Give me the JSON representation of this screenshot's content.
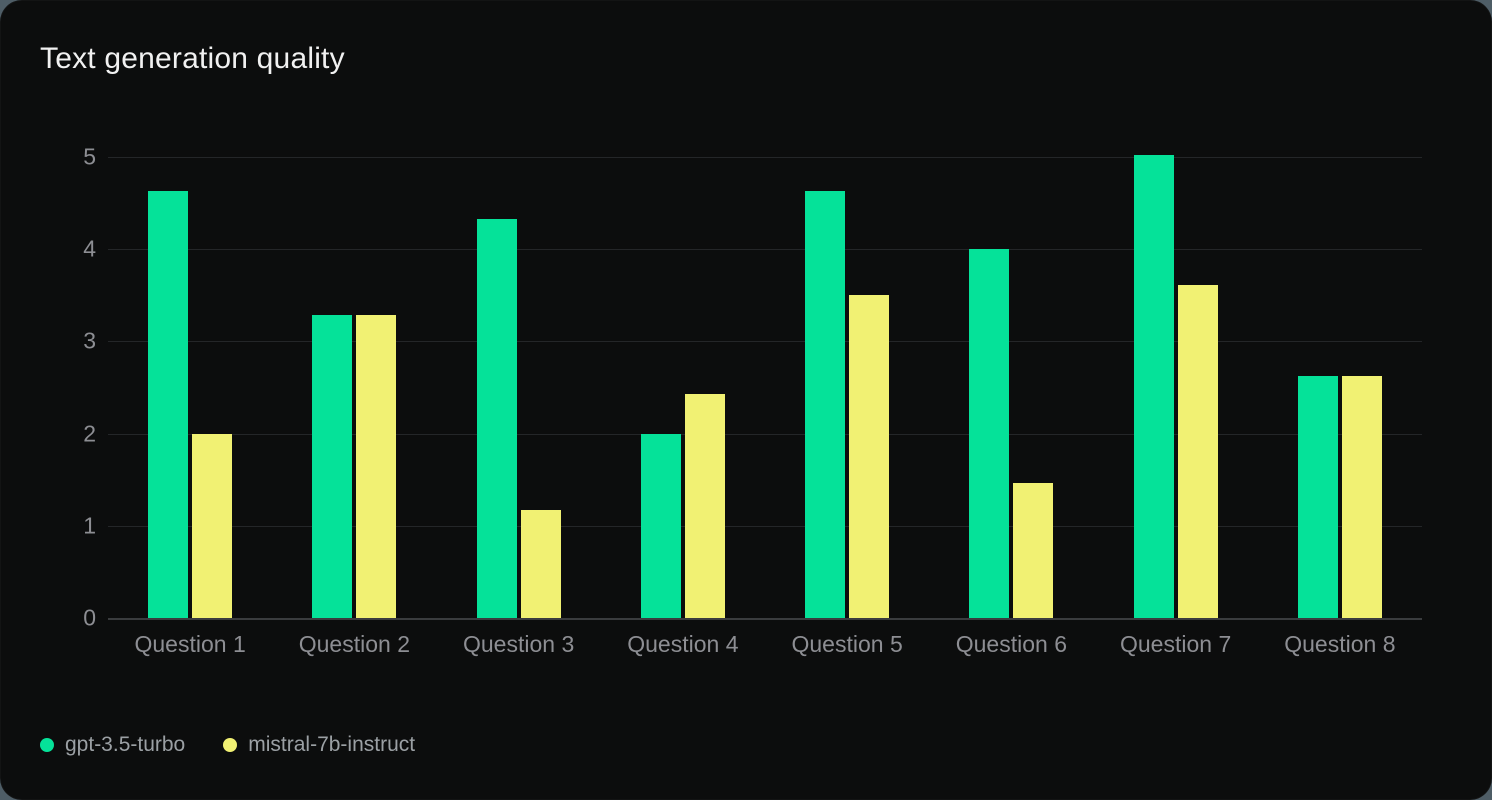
{
  "colors": {
    "page_background": "#4E5D66",
    "card_background": "#0C0D0D",
    "title_text": "#F1F1F1",
    "axis_text": "#8D8E93",
    "legend_text": "#9BA0A4",
    "gridline": "#242628",
    "zero_line": "#3A3C3E",
    "series_green": "#05E299",
    "series_yellow": "#F1F173"
  },
  "chart_data": {
    "type": "bar",
    "title": "Text generation quality",
    "categories": [
      "Question 1",
      "Question 2",
      "Question 3",
      "Question 4",
      "Question 5",
      "Question 6",
      "Question 7",
      "Question 8"
    ],
    "series": [
      {
        "name": "gpt-3.5-turbo",
        "color": "#05E299",
        "values": [
          4.63,
          3.29,
          4.33,
          2.0,
          4.63,
          4.0,
          5.02,
          2.63
        ]
      },
      {
        "name": "mistral-7b-instruct",
        "color": "#F1F173",
        "values": [
          2.0,
          3.29,
          1.17,
          2.43,
          3.5,
          1.47,
          3.61,
          2.63
        ]
      }
    ],
    "xlabel": "",
    "ylabel": "",
    "ylim": [
      0,
      5
    ],
    "yticks": [
      0,
      1,
      2,
      3,
      4,
      5
    ],
    "grid": "horizontal",
    "legend_position": "bottom-left"
  }
}
